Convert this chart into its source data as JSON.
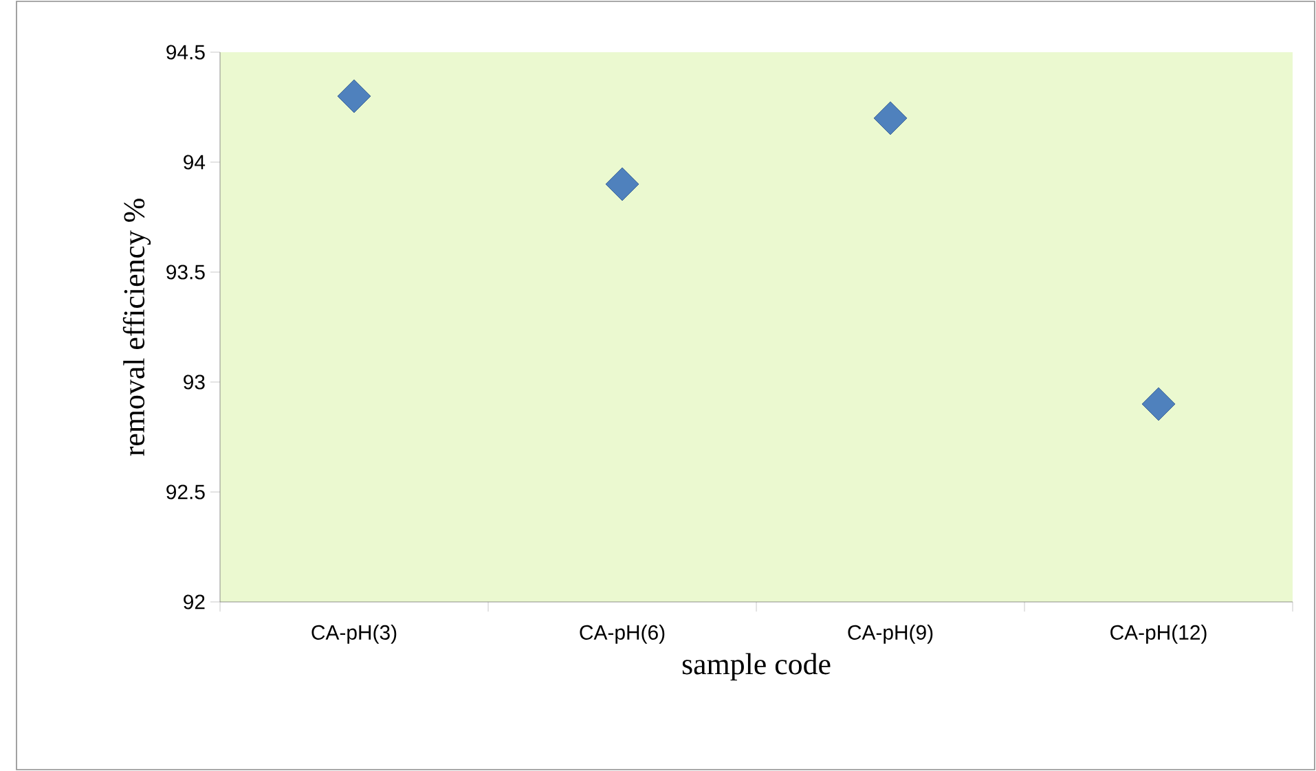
{
  "chart_data": {
    "type": "scatter",
    "xlabel": "sample code",
    "ylabel": "removal efficiency %",
    "categories": [
      "CA-pH(3)",
      "CA-pH(6)",
      "CA-pH(9)",
      "CA-pH(12)"
    ],
    "series": [
      {
        "color": "#4f81bd",
        "values": [
          94.3,
          93.9,
          94.2,
          92.9
        ]
      }
    ],
    "ylim": [
      92,
      94.5
    ],
    "yticks": [
      92,
      92.5,
      93,
      93.5,
      94,
      94.5
    ],
    "marker": "diamond",
    "grid": false
  }
}
